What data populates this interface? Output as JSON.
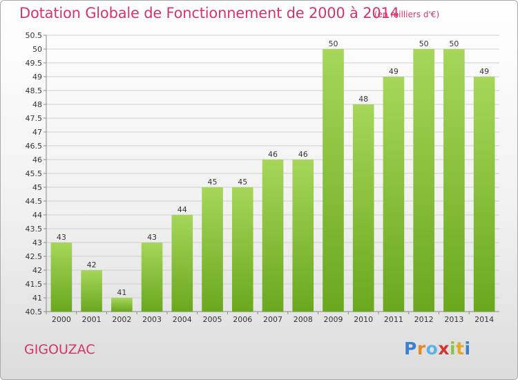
{
  "header": {
    "title": "Dotation Globale de Fonctionnement de 2000 à 2014",
    "unit": "(en milliers d'€)"
  },
  "footer": {
    "commune": "GIGOUZAC",
    "logo_text": "Proxiti"
  },
  "colors": {
    "title": "#d6336c",
    "bar_light": "#a6d65a",
    "bar_dark": "#6aa81e",
    "grid": "#cfcfcf"
  },
  "chart_data": {
    "type": "bar",
    "title": "Dotation Globale de Fonctionnement de 2000 à 2014",
    "subtitle": "(en milliers d'€)",
    "xlabel": "",
    "ylabel": "",
    "categories": [
      "2000",
      "2001",
      "2002",
      "2003",
      "2004",
      "2005",
      "2006",
      "2007",
      "2008",
      "2009",
      "2010",
      "2011",
      "2012",
      "2013",
      "2014"
    ],
    "values": [
      43,
      42,
      41,
      43,
      44,
      45,
      45,
      46,
      46,
      50,
      48,
      49,
      50,
      50,
      49
    ],
    "data_labels": [
      "43",
      "42",
      "41",
      "43",
      "44",
      "45",
      "45",
      "46",
      "46",
      "50",
      "48",
      "49",
      "50",
      "50",
      "49"
    ],
    "ylim": [
      40.5,
      50.5
    ],
    "yticks": [
      "40.5",
      "41",
      "41.5",
      "42",
      "42.5",
      "43",
      "43.5",
      "44",
      "44.5",
      "45",
      "45.5",
      "46",
      "46.5",
      "47",
      "47.5",
      "48",
      "48.5",
      "49",
      "49.5",
      "50",
      "50.5"
    ],
    "grid": true,
    "legend": "none"
  }
}
